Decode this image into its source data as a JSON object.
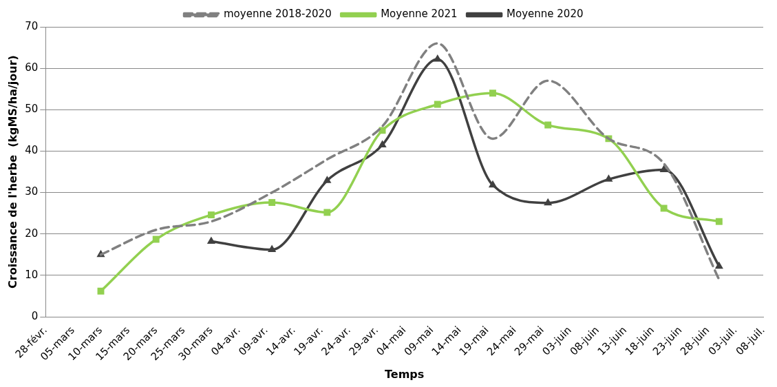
{
  "chart_data": {
    "type": "line",
    "xlabel": "Temps",
    "ylabel": "Croissance de l'herbe  (kgMS/ha/jour)",
    "x": [
      "--03-10",
      "--03-20",
      "--03-30",
      "--04-10",
      "--04-20",
      "--04-30",
      "--05-10",
      "--05-20",
      "--05-30",
      "--06-10",
      "--06-20",
      "--06-30"
    ],
    "series": [
      {
        "name": "moyenne 2018-2020",
        "color": "#808080",
        "line_style": "dashed",
        "marker": "none",
        "values": [
          15,
          21,
          23,
          30,
          38,
          46,
          66,
          43,
          57,
          43,
          37,
          9
        ]
      },
      {
        "name": "Moyenne 2021",
        "color": "#92d050",
        "line_style": "solid",
        "marker": "square",
        "values": [
          6.2,
          18.7,
          24.6,
          27.6,
          25.2,
          45,
          51.3,
          54,
          46.3,
          43,
          26.2,
          23
        ]
      },
      {
        "name": "Moyenne 2020",
        "color": "#404040",
        "line_style": "solid",
        "marker": "triangle",
        "values": [
          15,
          null,
          18.2,
          16.2,
          32.9,
          41.5,
          62.2,
          31.8,
          27.5,
          33.2,
          35.5,
          12.2
        ]
      }
    ],
    "xlim": [
      "--02-28",
      "--07-08"
    ],
    "xticks": [
      {
        "value": "--02-28",
        "label": "28-févr."
      },
      {
        "value": "--03-05",
        "label": "05-mars"
      },
      {
        "value": "--03-10",
        "label": "10-mars"
      },
      {
        "value": "--03-15",
        "label": "15-mars"
      },
      {
        "value": "--03-20",
        "label": "20-mars"
      },
      {
        "value": "--03-25",
        "label": "25-mars"
      },
      {
        "value": "--03-30",
        "label": "30-mars"
      },
      {
        "value": "--04-04",
        "label": "04-avr."
      },
      {
        "value": "--04-09",
        "label": "09-avr."
      },
      {
        "value": "--04-14",
        "label": "14-avr."
      },
      {
        "value": "--04-19",
        "label": "19-avr."
      },
      {
        "value": "--04-24",
        "label": "24-avr."
      },
      {
        "value": "--04-29",
        "label": "29-avr."
      },
      {
        "value": "--05-04",
        "label": "04-mai"
      },
      {
        "value": "--05-09",
        "label": "09-mai"
      },
      {
        "value": "--05-14",
        "label": "14-mai"
      },
      {
        "value": "--05-19",
        "label": "19-mai"
      },
      {
        "value": "--05-24",
        "label": "24-mai"
      },
      {
        "value": "--05-29",
        "label": "29-mai"
      },
      {
        "value": "--06-03",
        "label": "03-juin"
      },
      {
        "value": "--06-08",
        "label": "08-juin"
      },
      {
        "value": "--06-13",
        "label": "13-juin"
      },
      {
        "value": "--06-18",
        "label": "18-juin"
      },
      {
        "value": "--06-23",
        "label": "23-juin"
      },
      {
        "value": "--06-28",
        "label": "28-juin"
      },
      {
        "value": "--07-03",
        "label": "03-juil."
      },
      {
        "value": "--07-08",
        "label": "08-juil."
      }
    ],
    "ylim": [
      0,
      70
    ],
    "yticks": [
      0,
      10,
      20,
      30,
      40,
      50,
      60,
      70
    ],
    "grid": "y",
    "legend": "top"
  }
}
